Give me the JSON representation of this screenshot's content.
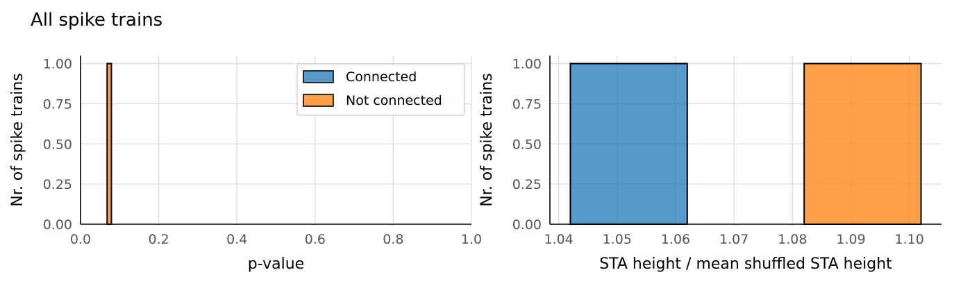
{
  "suptitle": "All spike trains",
  "colors": {
    "connected": "#1f77b4",
    "not_connected": "#ff7f0e",
    "grid": "#dddddd",
    "tick_text": "#555555"
  },
  "chart_data": [
    {
      "type": "bar",
      "xlabel": "p-value",
      "ylabel": "Nr. of spike trains",
      "xlim": [
        0.0,
        1.0
      ],
      "ylim": [
        0.0,
        1.05
      ],
      "xticks": [
        "0.0",
        "0.2",
        "0.4",
        "0.6",
        "0.8",
        "1.0"
      ],
      "yticks": [
        "0.00",
        "0.25",
        "0.50",
        "0.75",
        "1.00"
      ],
      "grid": true,
      "legend": {
        "placement": "top-right",
        "entries": [
          "Connected",
          "Not connected"
        ]
      },
      "series": [
        {
          "name": "Not connected",
          "bins": [
            {
              "x0": 0.068,
              "x1": 0.079,
              "y": 1.0
            }
          ]
        }
      ]
    },
    {
      "type": "bar",
      "xlabel": "STA height / mean shuffled STA height",
      "ylabel": "Nr. of spike trains",
      "xlim": [
        1.0385,
        1.1055
      ],
      "ylim": [
        0.0,
        1.05
      ],
      "xticks": [
        "1.04",
        "1.05",
        "1.06",
        "1.07",
        "1.08",
        "1.09",
        "1.10"
      ],
      "yticks": [
        "0.00",
        "0.25",
        "0.50",
        "0.75",
        "1.00"
      ],
      "grid": true,
      "series": [
        {
          "name": "Connected",
          "bins": [
            {
              "x0": 1.042,
              "x1": 1.062,
              "y": 1.0
            }
          ]
        },
        {
          "name": "Not connected",
          "bins": [
            {
              "x0": 1.082,
              "x1": 1.102,
              "y": 1.0
            }
          ]
        }
      ]
    }
  ]
}
